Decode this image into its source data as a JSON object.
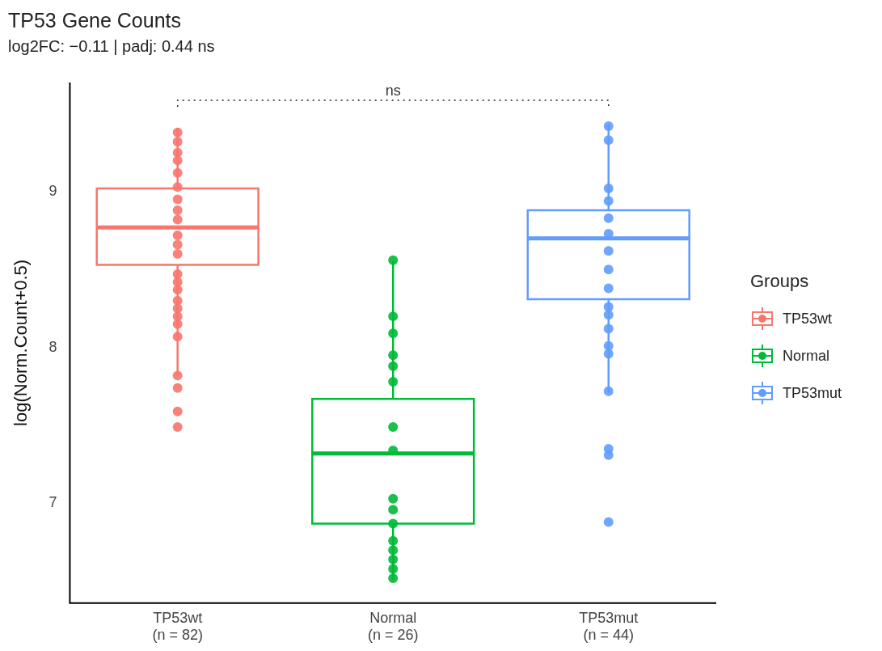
{
  "chart_data": {
    "type": "box",
    "title": "TP53 Gene Counts",
    "subtitle": "log2FC: −0.11 | padj: 0.44 ns",
    "ylabel": "log(Norm.Count+0.5)",
    "categories": [
      "TP53wt\n(n = 82)",
      "Normal\n(n = 26)",
      "TP53mut\n(n = 44)"
    ],
    "colors": [
      "#f8766d",
      "#00ba38",
      "#619cff"
    ],
    "boxes": [
      {
        "low": 7.82,
        "q1": 8.53,
        "median": 8.77,
        "q3": 9.02,
        "high": 9.41
      },
      {
        "low": 6.51,
        "q1": 6.87,
        "median": 7.32,
        "q3": 7.67,
        "high": 8.56
      },
      {
        "low": 7.71,
        "q1": 8.31,
        "median": 8.7,
        "q3": 8.88,
        "high": 9.43
      }
    ],
    "series": [
      {
        "name": "TP53wt",
        "type": "scatter",
        "color": "#f8766d",
        "x": [
          "TP53wt\n(n = 82)",
          "TP53wt\n(n = 82)",
          "TP53wt\n(n = 82)",
          "TP53wt\n(n = 82)",
          "TP53wt\n(n = 82)",
          "TP53wt\n(n = 82)",
          "TP53wt\n(n = 82)",
          "TP53wt\n(n = 82)",
          "TP53wt\n(n = 82)",
          "TP53wt\n(n = 82)",
          "TP53wt\n(n = 82)",
          "TP53wt\n(n = 82)",
          "TP53wt\n(n = 82)",
          "TP53wt\n(n = 82)",
          "TP53wt\n(n = 82)",
          "TP53wt\n(n = 82)",
          "TP53wt\n(n = 82)",
          "TP53wt\n(n = 82)",
          "TP53wt\n(n = 82)",
          "TP53wt\n(n = 82)",
          "TP53wt\n(n = 82)",
          "TP53wt\n(n = 82)",
          "TP53wt\n(n = 82)",
          "TP53wt\n(n = 82)"
        ],
        "values": [
          9.38,
          9.32,
          9.25,
          9.2,
          9.12,
          9.03,
          8.95,
          8.88,
          8.82,
          8.72,
          8.66,
          8.6,
          8.47,
          8.42,
          8.37,
          8.3,
          8.25,
          8.2,
          8.15,
          8.07,
          7.82,
          7.74,
          7.59,
          7.49
        ]
      },
      {
        "name": "Normal",
        "type": "scatter",
        "color": "#00ba38",
        "x": [
          "Normal\n(n = 26)",
          "Normal\n(n = 26)",
          "Normal\n(n = 26)",
          "Normal\n(n = 26)",
          "Normal\n(n = 26)",
          "Normal\n(n = 26)",
          "Normal\n(n = 26)",
          "Normal\n(n = 26)",
          "Normal\n(n = 26)",
          "Normal\n(n = 26)",
          "Normal\n(n = 26)",
          "Normal\n(n = 26)",
          "Normal\n(n = 26)",
          "Normal\n(n = 26)",
          "Normal\n(n = 26)",
          "Normal\n(n = 26)"
        ],
        "values": [
          8.56,
          8.2,
          8.09,
          7.95,
          7.88,
          7.78,
          7.49,
          7.34,
          7.03,
          6.96,
          6.87,
          6.76,
          6.7,
          6.64,
          6.58,
          6.52
        ]
      },
      {
        "name": "TP53mut",
        "type": "scatter",
        "color": "#619cff",
        "x": [
          "TP53mut\n(n = 44)",
          "TP53mut\n(n = 44)",
          "TP53mut\n(n = 44)",
          "TP53mut\n(n = 44)",
          "TP53mut\n(n = 44)",
          "TP53mut\n(n = 44)",
          "TP53mut\n(n = 44)",
          "TP53mut\n(n = 44)",
          "TP53mut\n(n = 44)",
          "TP53mut\n(n = 44)",
          "TP53mut\n(n = 44)",
          "TP53mut\n(n = 44)",
          "TP53mut\n(n = 44)",
          "TP53mut\n(n = 44)",
          "TP53mut\n(n = 44)",
          "TP53mut\n(n = 44)",
          "TP53mut\n(n = 44)",
          "TP53mut\n(n = 44)"
        ],
        "values": [
          9.42,
          9.33,
          9.02,
          8.94,
          8.83,
          8.73,
          8.62,
          8.5,
          8.38,
          8.26,
          8.21,
          8.12,
          8.01,
          7.96,
          7.72,
          7.35,
          7.31,
          6.88
        ]
      }
    ],
    "ylim": [
      6.36,
      9.7
    ],
    "yticks": [
      7,
      8,
      9
    ],
    "grid": false,
    "legend": "right",
    "legend_title": "Groups",
    "marker": "circle",
    "annotations": [
      "ns"
    ]
  }
}
